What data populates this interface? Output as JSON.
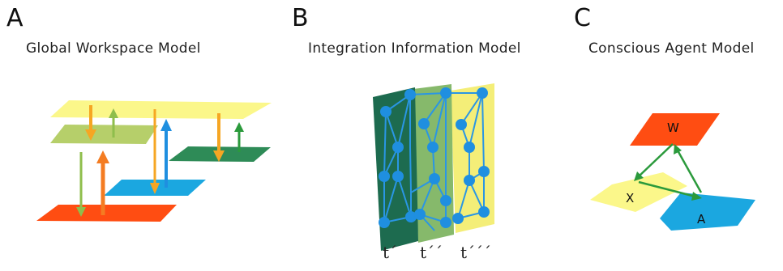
{
  "panels": {
    "a": {
      "letter": "A",
      "title": "Global Workspace Model"
    },
    "b": {
      "letter": "B",
      "title": "Integration Information Model",
      "time_labels": [
        "t´",
        "t´´",
        "t´´´"
      ]
    },
    "c": {
      "letter": "C",
      "title": "Conscious Agent Model",
      "nodes": {
        "w": "W",
        "x": "X",
        "a": "A"
      }
    }
  },
  "colors": {
    "yellow": "#fbf78a",
    "light_green": "#b6cf6a",
    "dark_green": "#2e8b57",
    "cyan": "#1ba7e0",
    "red_orange": "#ff4d12",
    "orange_arrow": "#f6a623",
    "orange_big": "#f47c22",
    "green_arrow": "#2b9a3c",
    "blue_node": "#1f8fe0",
    "layer1": "#1d6b4f",
    "layer2": "#86b96b",
    "layer3": "#f4ee78"
  }
}
